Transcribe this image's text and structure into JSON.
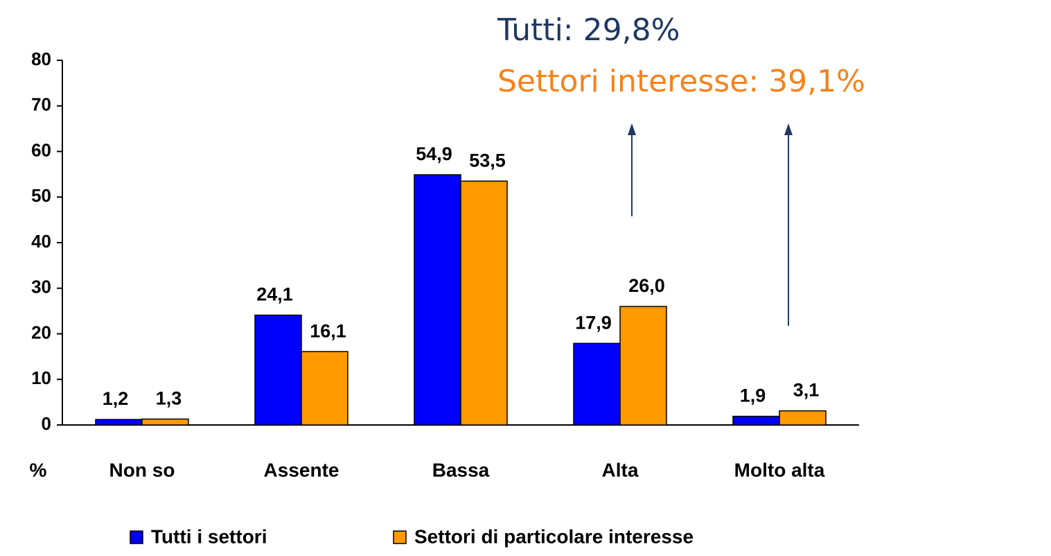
{
  "chart_data": {
    "type": "bar",
    "y_label": "%",
    "categories": [
      "Non so",
      "Assente",
      "Bassa",
      "Alta",
      "Molto alta"
    ],
    "series": [
      {
        "name": "Tutti i settori",
        "color": "#0000ff",
        "values": [
          1.2,
          24.1,
          54.9,
          17.9,
          1.9
        ],
        "value_labels": [
          "1,2",
          "24,1",
          "54,9",
          "17,9",
          "1,9"
        ]
      },
      {
        "name": "Settori di particolare interesse",
        "color": "#ff9900",
        "values": [
          1.3,
          16.1,
          53.5,
          26.0,
          3.1
        ],
        "value_labels": [
          "1,3",
          "16,1",
          "53,5",
          "26,0",
          "3,1"
        ]
      }
    ],
    "ylim": [
      0,
      80
    ],
    "yticks": [
      0,
      10,
      20,
      30,
      40,
      50,
      60,
      70,
      80
    ],
    "annotations": [
      {
        "text": "Tutti: 29,8%",
        "color": "#1f3864"
      },
      {
        "text": "Settori interesse: 39,1%",
        "color": "#f7821b"
      }
    ]
  }
}
